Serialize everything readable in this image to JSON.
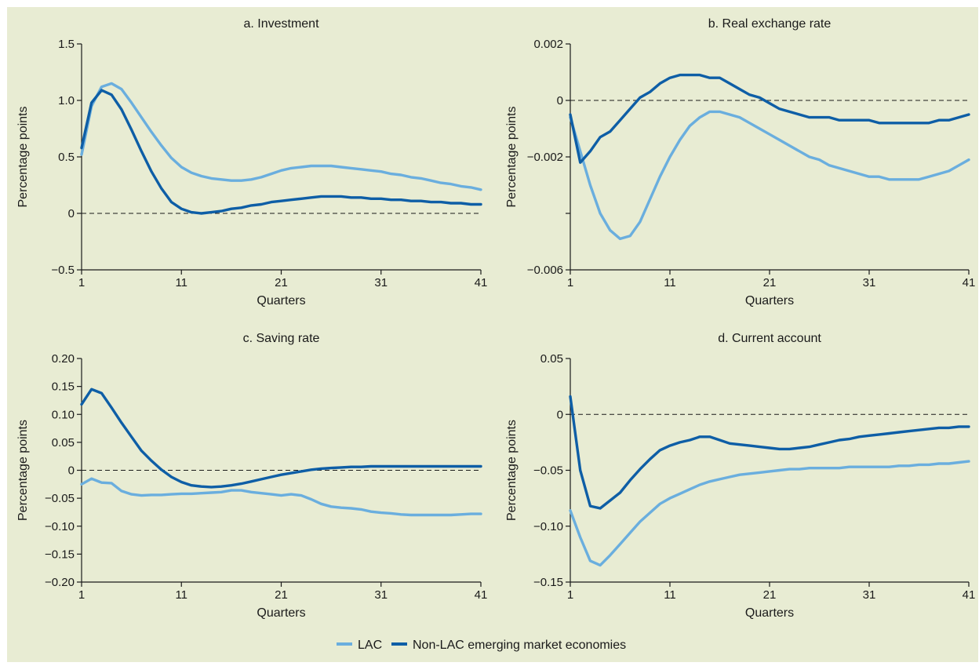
{
  "background_color": "#e8ecd3",
  "colors": {
    "LAC": "#6aaede",
    "Non-LAC": "#0e5ea6",
    "axis": "#1a1a1a"
  },
  "legend": [
    {
      "label": "LAC",
      "color": "#6aaede"
    },
    {
      "label": "Non-LAC emerging market economies",
      "color": "#0e5ea6"
    }
  ],
  "chart_data": [
    {
      "type": "line",
      "title": "a. Investment",
      "xlabel": "Quarters",
      "ylabel": "Percentage points",
      "xlim": [
        1,
        41
      ],
      "ylim": [
        -0.5,
        1.5
      ],
      "xticks": [
        1,
        11,
        21,
        31,
        41
      ],
      "yticks": [
        -0.5,
        0,
        0.5,
        1.0,
        1.5
      ],
      "ytick_labels": [
        "−0.5",
        "0",
        "0.5",
        "1.0",
        "1.5"
      ],
      "zero_line": 0,
      "series": [
        {
          "name": "LAC",
          "x": [
            1,
            2,
            3,
            4,
            5,
            6,
            7,
            8,
            9,
            10,
            11,
            12,
            13,
            14,
            15,
            16,
            17,
            18,
            19,
            20,
            21,
            22,
            23,
            24,
            25,
            26,
            27,
            28,
            29,
            30,
            31,
            32,
            33,
            34,
            35,
            36,
            37,
            38,
            39,
            40,
            41
          ],
          "values": [
            0.52,
            0.95,
            1.12,
            1.15,
            1.1,
            0.98,
            0.85,
            0.72,
            0.6,
            0.49,
            0.41,
            0.36,
            0.33,
            0.31,
            0.3,
            0.29,
            0.29,
            0.3,
            0.32,
            0.35,
            0.38,
            0.4,
            0.41,
            0.42,
            0.42,
            0.42,
            0.41,
            0.4,
            0.39,
            0.38,
            0.37,
            0.35,
            0.34,
            0.32,
            0.31,
            0.29,
            0.27,
            0.26,
            0.24,
            0.23,
            0.21
          ]
        },
        {
          "name": "Non-LAC emerging market economies",
          "x": [
            1,
            2,
            3,
            4,
            5,
            6,
            7,
            8,
            9,
            10,
            11,
            12,
            13,
            14,
            15,
            16,
            17,
            18,
            19,
            20,
            21,
            22,
            23,
            24,
            25,
            26,
            27,
            28,
            29,
            30,
            31,
            32,
            33,
            34,
            35,
            36,
            37,
            38,
            39,
            40,
            41
          ],
          "values": [
            0.58,
            0.98,
            1.09,
            1.05,
            0.92,
            0.74,
            0.55,
            0.37,
            0.22,
            0.1,
            0.04,
            0.01,
            0.0,
            0.01,
            0.02,
            0.04,
            0.05,
            0.07,
            0.08,
            0.1,
            0.11,
            0.12,
            0.13,
            0.14,
            0.15,
            0.15,
            0.15,
            0.14,
            0.14,
            0.13,
            0.13,
            0.12,
            0.12,
            0.11,
            0.11,
            0.1,
            0.1,
            0.09,
            0.09,
            0.08,
            0.08
          ]
        }
      ]
    },
    {
      "type": "line",
      "title": "b. Real exchange rate",
      "xlabel": "Quarters",
      "ylabel": "Percentage points",
      "xlim": [
        1,
        41
      ],
      "ylim": [
        -0.006,
        0.002
      ],
      "xticks": [
        1,
        11,
        21,
        31,
        41
      ],
      "yticks": [
        -0.006,
        -0.004,
        -0.002,
        0,
        0.002
      ],
      "ytick_labels": [
        "−0.006",
        "",
        "−0.002",
        "0",
        "0.002"
      ],
      "zero_line": 0,
      "series": [
        {
          "name": "LAC",
          "x": [
            1,
            2,
            3,
            4,
            5,
            6,
            7,
            8,
            9,
            10,
            11,
            12,
            13,
            14,
            15,
            16,
            17,
            18,
            19,
            20,
            21,
            22,
            23,
            24,
            25,
            26,
            27,
            28,
            29,
            30,
            31,
            32,
            33,
            34,
            35,
            36,
            37,
            38,
            39,
            40,
            41
          ],
          "values": [
            -0.0006,
            -0.0018,
            -0.003,
            -0.004,
            -0.0046,
            -0.0049,
            -0.0048,
            -0.0043,
            -0.0035,
            -0.0027,
            -0.002,
            -0.0014,
            -0.0009,
            -0.0006,
            -0.0004,
            -0.0004,
            -0.0005,
            -0.0006,
            -0.0008,
            -0.001,
            -0.0012,
            -0.0014,
            -0.0016,
            -0.0018,
            -0.002,
            -0.0021,
            -0.0023,
            -0.0024,
            -0.0025,
            -0.0026,
            -0.0027,
            -0.0027,
            -0.0028,
            -0.0028,
            -0.0028,
            -0.0028,
            -0.0027,
            -0.0026,
            -0.0025,
            -0.0023,
            -0.0021
          ]
        },
        {
          "name": "Non-LAC emerging market economies",
          "x": [
            1,
            2,
            3,
            4,
            5,
            6,
            7,
            8,
            9,
            10,
            11,
            12,
            13,
            14,
            15,
            16,
            17,
            18,
            19,
            20,
            21,
            22,
            23,
            24,
            25,
            26,
            27,
            28,
            29,
            30,
            31,
            32,
            33,
            34,
            35,
            36,
            37,
            38,
            39,
            40,
            41
          ],
          "values": [
            -0.0005,
            -0.0022,
            -0.0018,
            -0.0013,
            -0.0011,
            -0.0007,
            -0.0003,
            0.0001,
            0.0003,
            0.0006,
            0.0008,
            0.0009,
            0.0009,
            0.0009,
            0.0008,
            0.0008,
            0.0006,
            0.0004,
            0.0002,
            0.0001,
            -0.0001,
            -0.0003,
            -0.0004,
            -0.0005,
            -0.0006,
            -0.0006,
            -0.0006,
            -0.0007,
            -0.0007,
            -0.0007,
            -0.0007,
            -0.0008,
            -0.0008,
            -0.0008,
            -0.0008,
            -0.0008,
            -0.0008,
            -0.0007,
            -0.0007,
            -0.0006,
            -0.0005
          ]
        }
      ]
    },
    {
      "type": "line",
      "title": "c. Saving rate",
      "xlabel": "Quarters",
      "ylabel": "Percentage points",
      "xlim": [
        1,
        41
      ],
      "ylim": [
        -0.2,
        0.2
      ],
      "xticks": [
        1,
        11,
        21,
        31,
        41
      ],
      "yticks": [
        -0.2,
        -0.15,
        -0.1,
        -0.05,
        0,
        0.05,
        0.1,
        0.15,
        0.2
      ],
      "ytick_labels": [
        "−0.20",
        "−0.15",
        "−0.10",
        "−0.05",
        "0",
        "0.05",
        "0.10",
        "0.15",
        "0.20"
      ],
      "zero_line": 0,
      "series": [
        {
          "name": "LAC",
          "x": [
            1,
            2,
            3,
            4,
            5,
            6,
            7,
            8,
            9,
            10,
            11,
            12,
            13,
            14,
            15,
            16,
            17,
            18,
            19,
            20,
            21,
            22,
            23,
            24,
            25,
            26,
            27,
            28,
            29,
            30,
            31,
            32,
            33,
            34,
            35,
            36,
            37,
            38,
            39,
            40,
            41
          ],
          "values": [
            -0.025,
            -0.015,
            -0.022,
            -0.023,
            -0.037,
            -0.043,
            -0.045,
            -0.044,
            -0.044,
            -0.043,
            -0.042,
            -0.042,
            -0.041,
            -0.04,
            -0.039,
            -0.036,
            -0.036,
            -0.039,
            -0.041,
            -0.043,
            -0.045,
            -0.043,
            -0.045,
            -0.052,
            -0.06,
            -0.065,
            -0.067,
            -0.068,
            -0.07,
            -0.074,
            -0.076,
            -0.077,
            -0.079,
            -0.08,
            -0.08,
            -0.08,
            -0.08,
            -0.08,
            -0.079,
            -0.078,
            -0.078
          ]
        },
        {
          "name": "Non-LAC emerging market economies",
          "x": [
            1,
            2,
            3,
            4,
            5,
            6,
            7,
            8,
            9,
            10,
            11,
            12,
            13,
            14,
            15,
            16,
            17,
            18,
            19,
            20,
            21,
            22,
            23,
            24,
            25,
            26,
            27,
            28,
            29,
            30,
            31,
            32,
            33,
            34,
            35,
            36,
            37,
            38,
            39,
            40,
            41
          ],
          "values": [
            0.118,
            0.145,
            0.138,
            0.112,
            0.085,
            0.06,
            0.035,
            0.017,
            0.001,
            -0.012,
            -0.021,
            -0.027,
            -0.029,
            -0.03,
            -0.029,
            -0.027,
            -0.024,
            -0.02,
            -0.016,
            -0.012,
            -0.008,
            -0.005,
            -0.002,
            0.001,
            0.003,
            0.004,
            0.005,
            0.006,
            0.006,
            0.007,
            0.007,
            0.007,
            0.007,
            0.007,
            0.007,
            0.007,
            0.007,
            0.007,
            0.007,
            0.007,
            0.007
          ]
        }
      ]
    },
    {
      "type": "line",
      "title": "d. Current account",
      "xlabel": "Quarters",
      "ylabel": "Percentage points",
      "xlim": [
        1,
        41
      ],
      "ylim": [
        -0.15,
        0.05
      ],
      "xticks": [
        1,
        11,
        21,
        31,
        41
      ],
      "yticks": [
        -0.15,
        -0.1,
        -0.05,
        0,
        0.05
      ],
      "ytick_labels": [
        "−0.15",
        "−0.10",
        "−0.05",
        "0",
        "0.05"
      ],
      "zero_line": 0,
      "series": [
        {
          "name": "LAC",
          "x": [
            1,
            2,
            3,
            4,
            5,
            6,
            7,
            8,
            9,
            10,
            11,
            12,
            13,
            14,
            15,
            16,
            17,
            18,
            19,
            20,
            21,
            22,
            23,
            24,
            25,
            26,
            27,
            28,
            29,
            30,
            31,
            32,
            33,
            34,
            35,
            36,
            37,
            38,
            39,
            40,
            41
          ],
          "values": [
            -0.086,
            -0.11,
            -0.131,
            -0.135,
            -0.126,
            -0.116,
            -0.106,
            -0.096,
            -0.088,
            -0.08,
            -0.075,
            -0.071,
            -0.067,
            -0.063,
            -0.06,
            -0.058,
            -0.056,
            -0.054,
            -0.053,
            -0.052,
            -0.051,
            -0.05,
            -0.049,
            -0.049,
            -0.048,
            -0.048,
            -0.048,
            -0.048,
            -0.047,
            -0.047,
            -0.047,
            -0.047,
            -0.047,
            -0.046,
            -0.046,
            -0.045,
            -0.045,
            -0.044,
            -0.044,
            -0.043,
            -0.042
          ]
        },
        {
          "name": "Non-LAC emerging market economies",
          "x": [
            1,
            2,
            3,
            4,
            5,
            6,
            7,
            8,
            9,
            10,
            11,
            12,
            13,
            14,
            15,
            16,
            17,
            18,
            19,
            20,
            21,
            22,
            23,
            24,
            25,
            26,
            27,
            28,
            29,
            30,
            31,
            32,
            33,
            34,
            35,
            36,
            37,
            38,
            39,
            40,
            41
          ],
          "values": [
            0.016,
            -0.05,
            -0.082,
            -0.084,
            -0.077,
            -0.07,
            -0.059,
            -0.049,
            -0.04,
            -0.032,
            -0.028,
            -0.025,
            -0.023,
            -0.02,
            -0.02,
            -0.023,
            -0.026,
            -0.027,
            -0.028,
            -0.029,
            -0.03,
            -0.031,
            -0.031,
            -0.03,
            -0.029,
            -0.027,
            -0.025,
            -0.023,
            -0.022,
            -0.02,
            -0.019,
            -0.018,
            -0.017,
            -0.016,
            -0.015,
            -0.014,
            -0.013,
            -0.012,
            -0.012,
            -0.011,
            -0.011
          ]
        }
      ]
    }
  ]
}
